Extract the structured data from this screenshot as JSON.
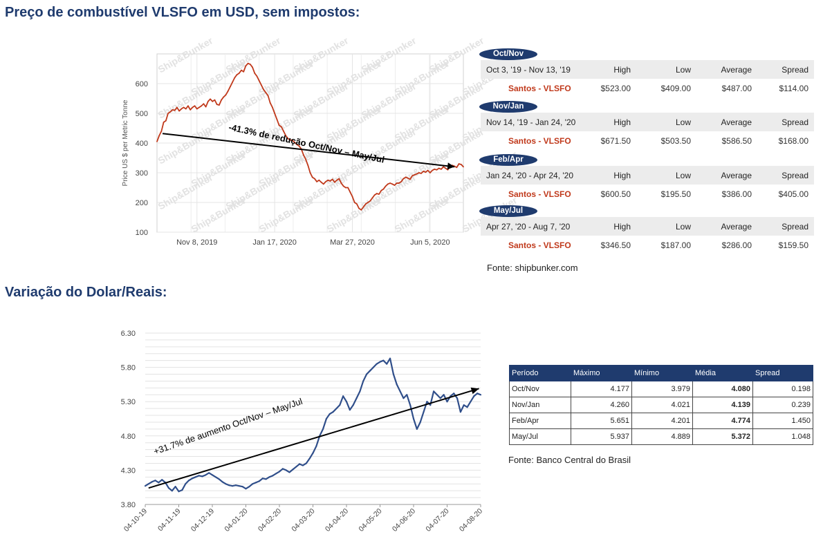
{
  "headings": {
    "vlsfo": "Preço de combustível VLSFO em USD, sem impostos:",
    "fx": "Variação do Dolar/Reais:"
  },
  "chart_data": [
    {
      "type": "line",
      "ylabel": "Price US $ per Metric Tonne",
      "ylim": [
        100,
        700
      ],
      "yticks": [
        100,
        200,
        300,
        400,
        500,
        600
      ],
      "xlim": [
        0,
        276
      ],
      "xticks": [
        {
          "x": 36,
          "label": "Nov 8, 2019"
        },
        {
          "x": 106,
          "label": "Jan 17, 2020"
        },
        {
          "x": 176,
          "label": "Mar 27, 2020"
        },
        {
          "x": 246,
          "label": "Jun 5, 2020"
        }
      ],
      "watermark": "Ship&Bunker",
      "annotation": "-41.3% de redução Oct/Nov – May/Jul",
      "trend": {
        "from": [
          5,
          432
        ],
        "to": [
          268,
          320
        ]
      },
      "series": [
        {
          "color": "#c0391b",
          "points": [
            [
              0,
              405
            ],
            [
              2,
              425
            ],
            [
              4,
              440
            ],
            [
              6,
              470
            ],
            [
              8,
              475
            ],
            [
              10,
              500
            ],
            [
              12,
              505
            ],
            [
              14,
              512
            ],
            [
              16,
              510
            ],
            [
              18,
              520
            ],
            [
              20,
              508
            ],
            [
              22,
              515
            ],
            [
              24,
              520
            ],
            [
              26,
              515
            ],
            [
              28,
              525
            ],
            [
              30,
              512
            ],
            [
              32,
              520
            ],
            [
              34,
              525
            ],
            [
              36,
              515
            ],
            [
              38,
              520
            ],
            [
              40,
              525
            ],
            [
              42,
              532
            ],
            [
              44,
              522
            ],
            [
              46,
              540
            ],
            [
              48,
              548
            ],
            [
              50,
              540
            ],
            [
              52,
              545
            ],
            [
              54,
              530
            ],
            [
              56,
              528
            ],
            [
              58,
              545
            ],
            [
              60,
              555
            ],
            [
              62,
              562
            ],
            [
              64,
              575
            ],
            [
              66,
              590
            ],
            [
              68,
              605
            ],
            [
              70,
              620
            ],
            [
              72,
              630
            ],
            [
              74,
              635
            ],
            [
              76,
              645
            ],
            [
              78,
              640
            ],
            [
              80,
              660
            ],
            [
              82,
              668
            ],
            [
              84,
              665
            ],
            [
              86,
              655
            ],
            [
              88,
              635
            ],
            [
              90,
              625
            ],
            [
              92,
              610
            ],
            [
              94,
              595
            ],
            [
              96,
              580
            ],
            [
              98,
              570
            ],
            [
              100,
              560
            ],
            [
              102,
              535
            ],
            [
              104,
              520
            ],
            [
              106,
              500
            ],
            [
              108,
              480
            ],
            [
              110,
              460
            ],
            [
              112,
              455
            ],
            [
              114,
              440
            ],
            [
              116,
              425
            ],
            [
              118,
              415
            ],
            [
              120,
              410
            ],
            [
              122,
              410
            ],
            [
              124,
              402
            ],
            [
              126,
              395
            ],
            [
              128,
              390
            ],
            [
              130,
              380
            ],
            [
              132,
              360
            ],
            [
              134,
              345
            ],
            [
              136,
              325
            ],
            [
              138,
              300
            ],
            [
              140,
              285
            ],
            [
              142,
              280
            ],
            [
              144,
              270
            ],
            [
              146,
              275
            ],
            [
              148,
              268
            ],
            [
              150,
              262
            ],
            [
              152,
              270
            ],
            [
              154,
              275
            ],
            [
              156,
              272
            ],
            [
              158,
              278
            ],
            [
              160,
              268
            ],
            [
              162,
              275
            ],
            [
              164,
              280
            ],
            [
              166,
              265
            ],
            [
              168,
              255
            ],
            [
              170,
              250
            ],
            [
              172,
              250
            ],
            [
              174,
              235
            ],
            [
              176,
              220
            ],
            [
              178,
              200
            ],
            [
              180,
              195
            ],
            [
              182,
              180
            ],
            [
              184,
              175
            ],
            [
              186,
              185
            ],
            [
              188,
              195
            ],
            [
              190,
              200
            ],
            [
              192,
              205
            ],
            [
              194,
              215
            ],
            [
              196,
              225
            ],
            [
              198,
              230
            ],
            [
              200,
              228
            ],
            [
              202,
              240
            ],
            [
              204,
              245
            ],
            [
              206,
              255
            ],
            [
              208,
              262
            ],
            [
              210,
              265
            ],
            [
              212,
              262
            ],
            [
              214,
              258
            ],
            [
              216,
              265
            ],
            [
              218,
              265
            ],
            [
              220,
              270
            ],
            [
              222,
              280
            ],
            [
              224,
              285
            ],
            [
              226,
              282
            ],
            [
              228,
              278
            ],
            [
              230,
              290
            ],
            [
              232,
              293
            ],
            [
              234,
              296
            ],
            [
              236,
              300
            ],
            [
              238,
              298
            ],
            [
              240,
              305
            ],
            [
              242,
              302
            ],
            [
              244,
              308
            ],
            [
              246,
              300
            ],
            [
              248,
              308
            ],
            [
              250,
              312
            ],
            [
              252,
              310
            ],
            [
              254,
              315
            ],
            [
              256,
              312
            ],
            [
              258,
              320
            ],
            [
              260,
              315
            ],
            [
              262,
              310
            ],
            [
              264,
              322
            ],
            [
              266,
              325
            ],
            [
              268,
              322
            ],
            [
              270,
              318
            ],
            [
              272,
              330
            ],
            [
              274,
              328
            ],
            [
              276,
              320
            ]
          ]
        }
      ]
    },
    {
      "type": "line",
      "ylim": [
        3.8,
        6.3
      ],
      "yticks": [
        "3.80",
        "4.30",
        "4.80",
        "5.30",
        "5.80",
        "6.30"
      ],
      "categories": [
        "04-10-19",
        "04-11-19",
        "04-12-19",
        "04-01-20",
        "04-02-20",
        "04-03-20",
        "04-04-20",
        "04-05-20",
        "04-06-20",
        "04-07-20",
        "04-08-20"
      ],
      "annotation": "+31.7% de aumento Oct/Nov – May/Jul",
      "trend": {
        "from": [
          0.1,
          4.04
        ],
        "to": [
          9.95,
          5.49
        ]
      },
      "series": [
        {
          "color": "#2f4e8a",
          "points": [
            [
              0,
              4.07
            ],
            [
              0.1,
              4.1
            ],
            [
              0.2,
              4.13
            ],
            [
              0.3,
              4.15
            ],
            [
              0.4,
              4.12
            ],
            [
              0.5,
              4.16
            ],
            [
              0.6,
              4.12
            ],
            [
              0.7,
              4.04
            ],
            [
              0.8,
              4.0
            ],
            [
              0.9,
              4.06
            ],
            [
              1.0,
              3.99
            ],
            [
              1.1,
              4.01
            ],
            [
              1.2,
              4.1
            ],
            [
              1.3,
              4.15
            ],
            [
              1.4,
              4.18
            ],
            [
              1.5,
              4.2
            ],
            [
              1.6,
              4.22
            ],
            [
              1.7,
              4.21
            ],
            [
              1.8,
              4.23
            ],
            [
              1.9,
              4.26
            ],
            [
              2.0,
              4.23
            ],
            [
              2.1,
              4.2
            ],
            [
              2.2,
              4.17
            ],
            [
              2.3,
              4.13
            ],
            [
              2.4,
              4.1
            ],
            [
              2.5,
              4.08
            ],
            [
              2.6,
              4.07
            ],
            [
              2.7,
              4.08
            ],
            [
              2.8,
              4.07
            ],
            [
              2.9,
              4.06
            ],
            [
              3.0,
              4.03
            ],
            [
              3.1,
              4.06
            ],
            [
              3.2,
              4.1
            ],
            [
              3.3,
              4.12
            ],
            [
              3.4,
              4.14
            ],
            [
              3.5,
              4.18
            ],
            [
              3.6,
              4.17
            ],
            [
              3.7,
              4.2
            ],
            [
              3.8,
              4.22
            ],
            [
              3.9,
              4.25
            ],
            [
              4.0,
              4.28
            ],
            [
              4.1,
              4.32
            ],
            [
              4.2,
              4.3
            ],
            [
              4.3,
              4.27
            ],
            [
              4.4,
              4.31
            ],
            [
              4.5,
              4.35
            ],
            [
              4.6,
              4.39
            ],
            [
              4.7,
              4.37
            ],
            [
              4.8,
              4.4
            ],
            [
              4.9,
              4.47
            ],
            [
              5.0,
              4.55
            ],
            [
              5.1,
              4.65
            ],
            [
              5.2,
              4.8
            ],
            [
              5.3,
              4.9
            ],
            [
              5.4,
              5.05
            ],
            [
              5.5,
              5.12
            ],
            [
              5.6,
              5.15
            ],
            [
              5.7,
              5.2
            ],
            [
              5.8,
              5.25
            ],
            [
              5.9,
              5.38
            ],
            [
              6.0,
              5.3
            ],
            [
              6.1,
              5.18
            ],
            [
              6.2,
              5.25
            ],
            [
              6.3,
              5.35
            ],
            [
              6.4,
              5.45
            ],
            [
              6.5,
              5.6
            ],
            [
              6.6,
              5.7
            ],
            [
              6.7,
              5.75
            ],
            [
              6.8,
              5.8
            ],
            [
              6.9,
              5.85
            ],
            [
              7.0,
              5.88
            ],
            [
              7.1,
              5.9
            ],
            [
              7.2,
              5.85
            ],
            [
              7.3,
              5.93
            ],
            [
              7.4,
              5.7
            ],
            [
              7.5,
              5.55
            ],
            [
              7.6,
              5.45
            ],
            [
              7.7,
              5.35
            ],
            [
              7.8,
              5.4
            ],
            [
              7.9,
              5.25
            ],
            [
              8.0,
              5.05
            ],
            [
              8.1,
              4.9
            ],
            [
              8.2,
              5.0
            ],
            [
              8.3,
              5.15
            ],
            [
              8.4,
              5.3
            ],
            [
              8.5,
              5.25
            ],
            [
              8.6,
              5.45
            ],
            [
              8.7,
              5.4
            ],
            [
              8.8,
              5.35
            ],
            [
              8.9,
              5.4
            ],
            [
              9.0,
              5.3
            ],
            [
              9.1,
              5.38
            ],
            [
              9.2,
              5.42
            ],
            [
              9.3,
              5.35
            ],
            [
              9.4,
              5.15
            ],
            [
              9.5,
              5.25
            ],
            [
              9.6,
              5.22
            ],
            [
              9.7,
              5.3
            ],
            [
              9.8,
              5.38
            ],
            [
              9.9,
              5.42
            ],
            [
              10.0,
              5.4
            ]
          ]
        }
      ]
    }
  ],
  "vlsfo_tables": [
    {
      "tag": "Oct/Nov",
      "period": "Oct 3, '19 - Nov 13, '19",
      "location": "Santos - VLSFO",
      "high": "$523.00",
      "low": "$409.00",
      "average": "$487.00",
      "spread": "$114.00"
    },
    {
      "tag": "Nov/Jan",
      "period": "Nov 14, '19 - Jan 24, '20",
      "location": "Santos - VLSFO",
      "high": "$671.50",
      "low": "$503.50",
      "average": "$586.50",
      "spread": "$168.00"
    },
    {
      "tag": "Feb/Apr",
      "period": "Jan 24, '20 - Apr 24, '20",
      "location": "Santos - VLSFO",
      "high": "$600.50",
      "low": "$195.50",
      "average": "$386.00",
      "spread": "$405.00"
    },
    {
      "tag": "May/Jul",
      "period": "Apr 27, '20 - Aug 7, '20",
      "location": "Santos - VLSFO",
      "high": "$346.50",
      "low": "$187.00",
      "average": "$286.00",
      "spread": "$159.50"
    }
  ],
  "vlsfo_cols": {
    "high": "High",
    "low": "Low",
    "average": "Average",
    "spread": "Spread"
  },
  "vlsfo_source": "Fonte: shipbunker.com",
  "fx_table": {
    "headers": [
      "Período",
      "Máximo",
      "Mínimo",
      "Média",
      "Spread"
    ],
    "rows": [
      [
        "Oct/Nov",
        "4.177",
        "3.979",
        "4.080",
        "0.198"
      ],
      [
        "Nov/Jan",
        "4.260",
        "4.021",
        "4.139",
        "0.239"
      ],
      [
        "Feb/Apr",
        "5.651",
        "4.201",
        "4.774",
        "1.450"
      ],
      [
        "May/Jul",
        "5.937",
        "4.889",
        "5.372",
        "1.048"
      ]
    ]
  },
  "fx_source": "Fonte: Banco Central do Brasil"
}
